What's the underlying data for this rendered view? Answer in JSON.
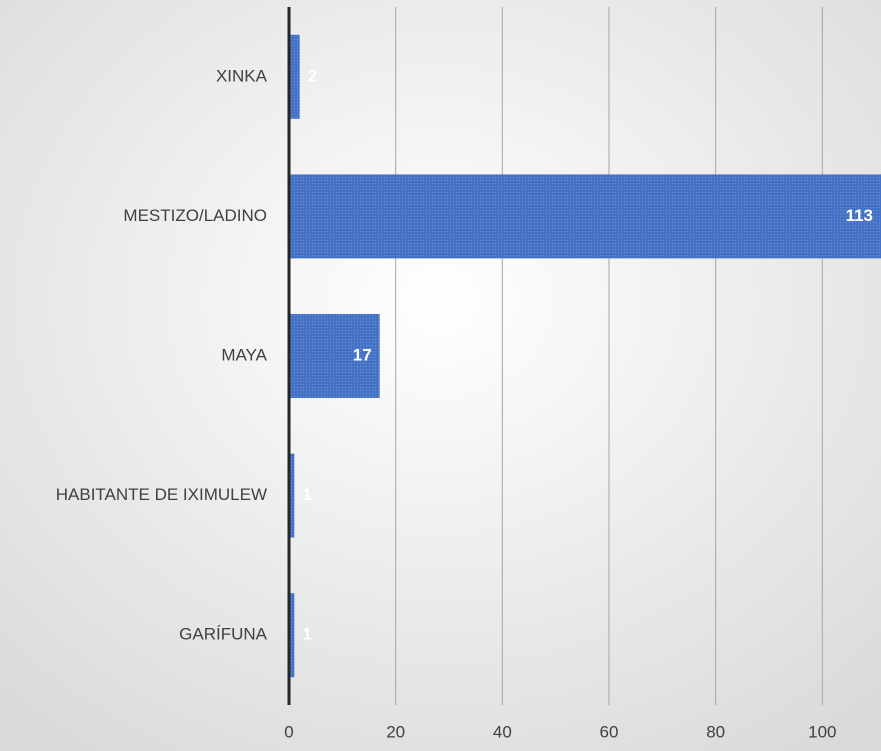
{
  "chart_data": {
    "type": "barh",
    "categories": [
      "XINKA",
      "MESTIZO/LADINO",
      "MAYA",
      "HABITANTE DE IXIMULEW",
      "GARÍFUNA"
    ],
    "values": [
      2,
      113,
      17,
      1,
      1
    ],
    "color": "#4472c4",
    "xlim": [
      0,
      120
    ],
    "xticks": [
      0,
      20,
      40,
      60,
      80,
      100
    ],
    "grid": true
  }
}
